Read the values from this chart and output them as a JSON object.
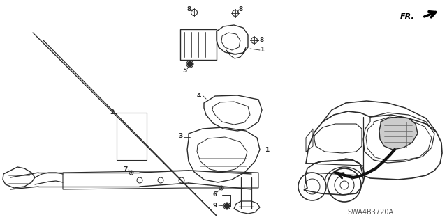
{
  "bg_color": "#ffffff",
  "fig_width": 6.4,
  "fig_height": 3.19,
  "dpi": 100,
  "diagram_code": "SWA4B3720A",
  "fr_label": "FR.",
  "line_color": "#2a2a2a",
  "text_color": "#2a2a2a",
  "lw_main": 1.0,
  "lw_thin": 0.6,
  "lw_thick": 1.4
}
